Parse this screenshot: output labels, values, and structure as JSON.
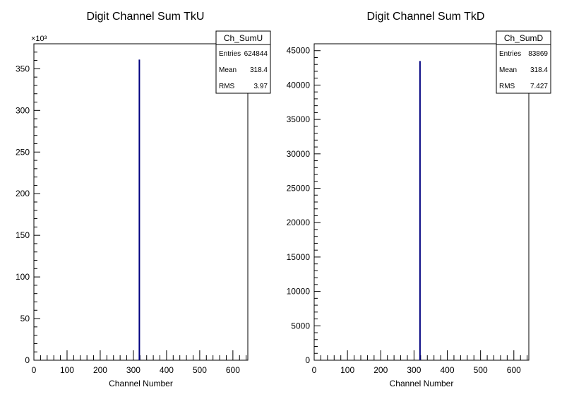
{
  "chart_data": [
    {
      "type": "bar",
      "title": "Digit Channel Sum TkU",
      "xlabel": "Channel Number",
      "ylabel": "",
      "xlim": [
        0,
        645
      ],
      "ylim": [
        0,
        380000
      ],
      "x_ticks": [
        "0",
        "100",
        "200",
        "300",
        "400",
        "500",
        "600"
      ],
      "y_ticks": [
        "0",
        "50",
        "100",
        "150",
        "200",
        "250",
        "300",
        "350"
      ],
      "y_tick_values": [
        0,
        50000,
        100000,
        150000,
        200000,
        250000,
        300000,
        350000
      ],
      "y_exponent_label": "×10³",
      "bins": [
        {
          "x": 318,
          "value": 361000
        }
      ],
      "line_color": "#000080",
      "stats": {
        "name": "Ch_SumU",
        "rows": [
          {
            "label": "Entries",
            "value": "624844"
          },
          {
            "label": "Mean",
            "value": "318.4"
          },
          {
            "label": "RMS",
            "value": "3.97"
          }
        ]
      }
    },
    {
      "type": "bar",
      "title": "Digit Channel Sum TkD",
      "xlabel": "Channel Number",
      "ylabel": "",
      "xlim": [
        0,
        645
      ],
      "ylim": [
        0,
        46000
      ],
      "x_ticks": [
        "0",
        "100",
        "200",
        "300",
        "400",
        "500",
        "600"
      ],
      "y_ticks": [
        "0",
        "5000",
        "10000",
        "15000",
        "20000",
        "25000",
        "30000",
        "35000",
        "40000",
        "45000"
      ],
      "y_tick_values": [
        0,
        5000,
        10000,
        15000,
        20000,
        25000,
        30000,
        35000,
        40000,
        45000
      ],
      "y_exponent_label": "",
      "bins": [
        {
          "x": 318,
          "value": 43500
        }
      ],
      "line_color": "#000080",
      "stats": {
        "name": "Ch_SumD",
        "rows": [
          {
            "label": "Entries",
            "value": "83869"
          },
          {
            "label": "Mean",
            "value": "318.4"
          },
          {
            "label": "RMS",
            "value": "7.427"
          }
        ]
      }
    }
  ]
}
